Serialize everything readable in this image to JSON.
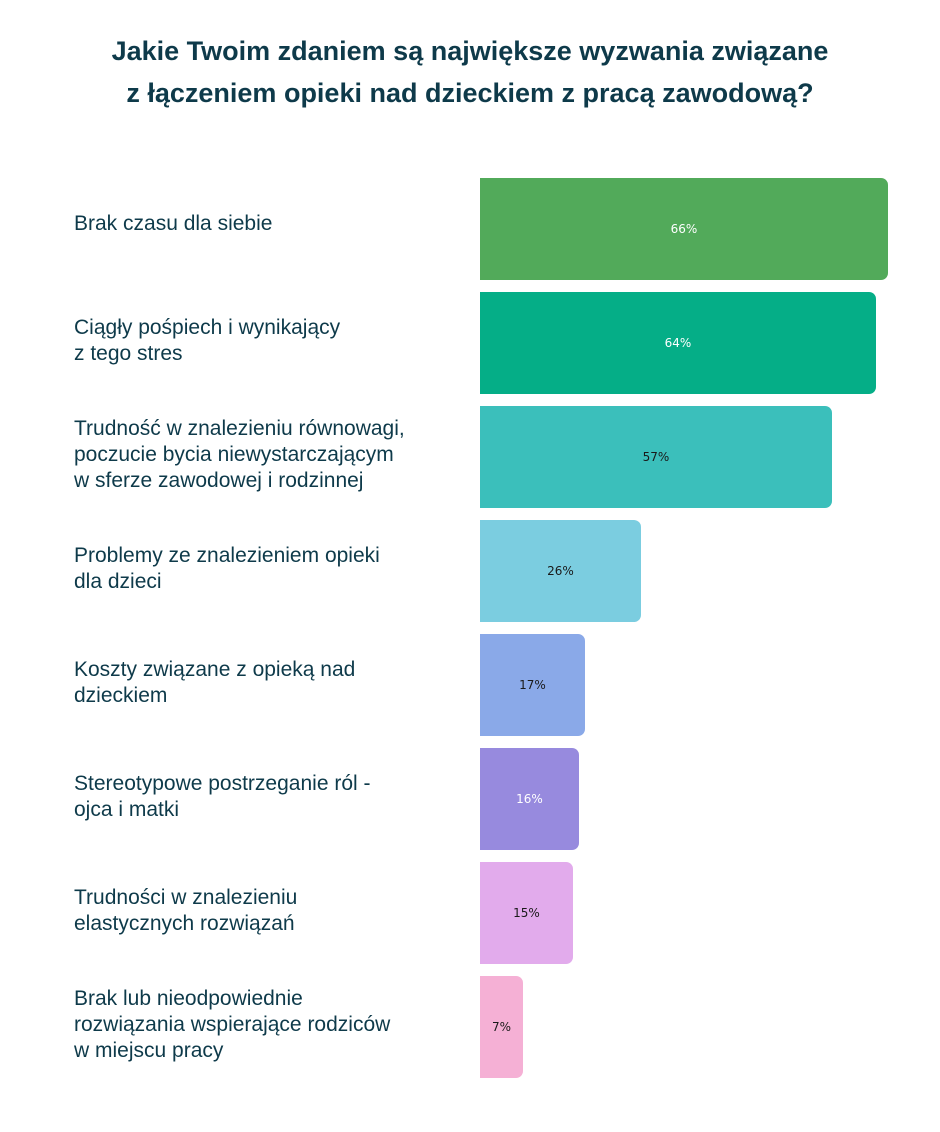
{
  "title": {
    "line1": "Jakie Twoim zdaniem są największe wyzwania związane",
    "line2": "z łączeniem opieki nad dzieckiem z pracą zawodową?"
  },
  "chart_data": {
    "type": "bar",
    "orientation": "horizontal",
    "title": "Jakie Twoim zdaniem są największe wyzwania związane z łączeniem opieki nad dzieckiem z pracą zawodową?",
    "unit": "%",
    "xlim": [
      0,
      66
    ],
    "grid": false,
    "categories": [
      {
        "lines": [
          "Brak czasu dla siebie"
        ]
      },
      {
        "lines": [
          "Ciągły pośpiech i wynikający",
          "z tego stres"
        ]
      },
      {
        "lines": [
          "Trudność w znalezieniu równowagi,",
          "poczucie bycia niewystarczającym",
          "w sferze zawodowej i rodzinnej"
        ]
      },
      {
        "lines": [
          "Problemy ze znalezieniem opieki",
          "dla dzieci"
        ]
      },
      {
        "lines": [
          "Koszty związane z opieką nad",
          "dzieckiem"
        ]
      },
      {
        "lines": [
          "Stereotypowe postrzeganie ról -",
          "ojca i matki"
        ]
      },
      {
        "lines": [
          "Trudności w znalezieniu",
          "elastycznych rozwiązań"
        ]
      },
      {
        "lines": [
          "Brak lub nieodpowiednie",
          "rozwiązania wspierające rodziców",
          "w miejscu pracy"
        ]
      }
    ],
    "values": [
      66,
      64,
      57,
      26,
      17,
      16,
      15,
      7
    ],
    "data_labels": [
      "66%",
      "64%",
      "57%",
      "26%",
      "17%",
      "16%",
      "15%",
      "7%"
    ],
    "colors": [
      "#52aa5a",
      "#05ae87",
      "#3bbfbb",
      "#7bcde0",
      "#8aa9e8",
      "#978ade",
      "#e2abec",
      "#f5b0d5"
    ],
    "label_colors": [
      "#ffffff",
      "#ffffff",
      "#1a1a1a",
      "#1a1a1a",
      "#1a1a1a",
      "#ffffff",
      "#1a1a1a",
      "#1a1a1a"
    ]
  }
}
